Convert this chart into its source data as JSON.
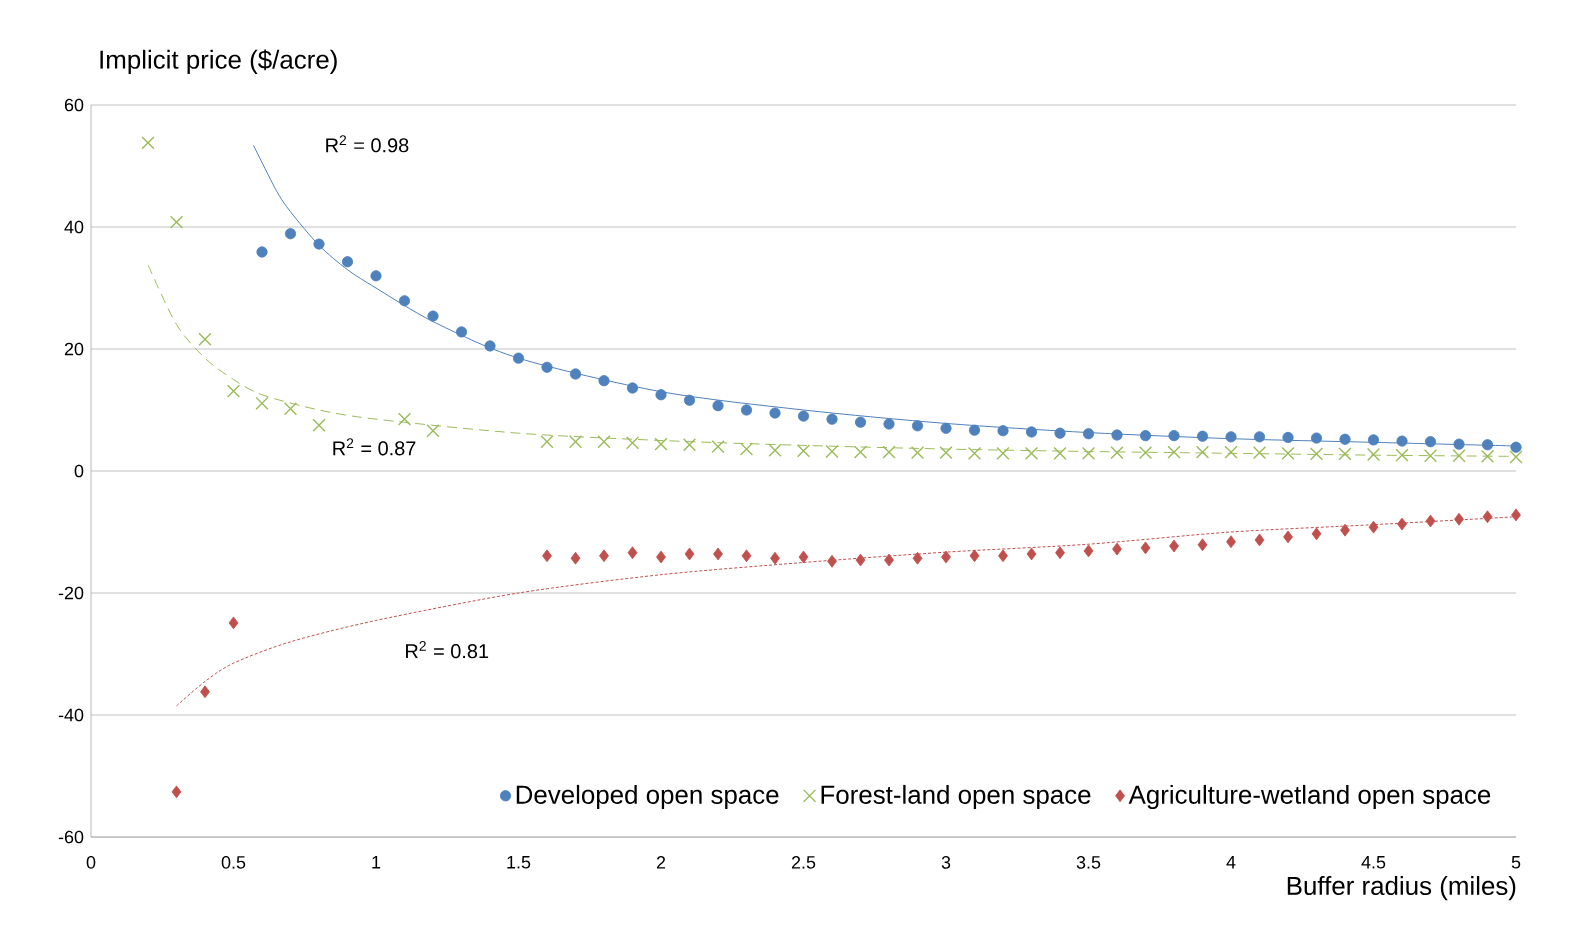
{
  "chart_data": {
    "type": "scatter",
    "xlabel": "Buffer radius (miles)",
    "ylabel": "Implicit price ($/acre)",
    "xlim": [
      0,
      5
    ],
    "ylim": [
      -60,
      60
    ],
    "xticks": [
      0,
      0.5,
      1,
      1.5,
      2,
      2.5,
      3,
      3.5,
      4,
      4.5,
      5
    ],
    "yticks": [
      -60,
      -40,
      -20,
      0,
      20,
      40,
      60
    ],
    "grid": "y",
    "legend": "bottom right",
    "series": [
      {
        "name": "Developed open space",
        "marker": "circle",
        "color": "#4f81bd",
        "x": [
          0.6,
          0.7,
          0.8,
          0.9,
          1.0,
          1.1,
          1.2,
          1.3,
          1.4,
          1.5,
          1.6,
          1.7,
          1.8,
          1.9,
          2.0,
          2.1,
          2.2,
          2.3,
          2.4,
          2.5,
          2.6,
          2.7,
          2.8,
          2.9,
          3.0,
          3.1,
          3.2,
          3.3,
          3.4,
          3.5,
          3.6,
          3.7,
          3.8,
          3.9,
          4.0,
          4.1,
          4.2,
          4.3,
          4.4,
          4.5,
          4.6,
          4.7,
          4.8,
          4.9,
          5.0
        ],
        "values": [
          35.9,
          38.9,
          37.2,
          34.3,
          32.0,
          27.9,
          25.4,
          22.8,
          20.5,
          18.5,
          17.0,
          15.9,
          14.8,
          13.6,
          12.5,
          11.6,
          10.7,
          10.0,
          9.5,
          9.0,
          8.5,
          8.0,
          7.7,
          7.4,
          7.0,
          6.7,
          6.6,
          6.4,
          6.2,
          6.1,
          5.9,
          5.8,
          5.8,
          5.7,
          5.6,
          5.6,
          5.5,
          5.4,
          5.2,
          5.1,
          4.9,
          4.8,
          4.4,
          4.3,
          3.9
        ]
      },
      {
        "name": "Forest-land open space",
        "marker": "cross",
        "color": "#9bbb59",
        "x": [
          0.2,
          0.3,
          0.4,
          0.5,
          0.6,
          0.7,
          0.8,
          1.1,
          1.2,
          1.6,
          1.7,
          1.8,
          1.9,
          2.0,
          2.1,
          2.2,
          2.3,
          2.4,
          2.5,
          2.6,
          2.7,
          2.8,
          2.9,
          3.0,
          3.1,
          3.2,
          3.3,
          3.4,
          3.5,
          3.6,
          3.7,
          3.8,
          3.9,
          4.0,
          4.1,
          4.2,
          4.3,
          4.4,
          4.5,
          4.6,
          4.7,
          4.8,
          4.9,
          5.0
        ],
        "values": [
          53.8,
          40.8,
          21.6,
          13.1,
          11.1,
          10.2,
          7.5,
          8.5,
          6.6,
          4.8,
          4.8,
          4.8,
          4.6,
          4.4,
          4.3,
          4.0,
          3.6,
          3.4,
          3.3,
          3.2,
          3.1,
          3.1,
          3.0,
          3.0,
          2.9,
          2.9,
          2.9,
          2.9,
          2.9,
          3.0,
          3.0,
          3.1,
          3.1,
          3.1,
          3.0,
          2.9,
          2.8,
          2.8,
          2.7,
          2.6,
          2.5,
          2.5,
          2.4,
          2.3
        ]
      },
      {
        "name": "Agriculture-wetland open space",
        "marker": "diamond",
        "color": "#c0504d",
        "x": [
          0.3,
          0.4,
          0.5,
          1.6,
          1.7,
          1.8,
          1.9,
          2.0,
          2.1,
          2.2,
          2.3,
          2.4,
          2.5,
          2.6,
          2.7,
          2.8,
          2.9,
          3.0,
          3.1,
          3.2,
          3.3,
          3.4,
          3.5,
          3.6,
          3.7,
          3.8,
          3.9,
          4.0,
          4.1,
          4.2,
          4.3,
          4.4,
          4.5,
          4.6,
          4.7,
          4.8,
          4.9,
          5.0
        ],
        "values": [
          -52.6,
          -36.2,
          -24.9,
          -13.9,
          -14.3,
          -13.9,
          -13.4,
          -14.1,
          -13.6,
          -13.6,
          -13.9,
          -14.3,
          -14.1,
          -14.8,
          -14.6,
          -14.6,
          -14.3,
          -14.1,
          -13.9,
          -13.9,
          -13.6,
          -13.4,
          -13.1,
          -12.8,
          -12.6,
          -12.3,
          -12.1,
          -11.6,
          -11.3,
          -10.8,
          -10.3,
          -9.7,
          -9.2,
          -8.7,
          -8.2,
          -7.9,
          -7.5,
          -7.2
        ]
      },
      {
        "type": "line",
        "line_style": "solid",
        "color": "#4f81bd",
        "x": [
          0.57,
          0.65,
          0.7,
          0.8,
          0.9,
          1.0,
          1.2,
          1.5,
          2.0,
          2.5,
          3.0,
          3.5,
          4.0,
          4.5,
          5.0
        ],
        "values": [
          53.4,
          46,
          42.5,
          37,
          33,
          30,
          24.5,
          18.5,
          13,
          10,
          7.8,
          6.3,
          5.3,
          4.7,
          4.1
        ]
      },
      {
        "type": "line",
        "line_style": "dashed",
        "color": "#9bbb59",
        "x": [
          0.2,
          0.3,
          0.4,
          0.5,
          0.6,
          0.8,
          1.0,
          1.5,
          2.0,
          2.5,
          3.0,
          3.5,
          4.0,
          4.5,
          5.0
        ],
        "values": [
          33.8,
          24,
          18.5,
          15,
          12.5,
          10,
          8.5,
          6.2,
          5,
          4.2,
          3.6,
          3.2,
          2.9,
          2.6,
          2.4
        ]
      },
      {
        "type": "line",
        "line_style": "dotted",
        "color": "#c0504d",
        "x": [
          0.3,
          0.4,
          0.5,
          0.7,
          1.0,
          1.5,
          2.0,
          2.5,
          3.0,
          3.5,
          4.0,
          4.5,
          5.0
        ],
        "values": [
          -38.5,
          -34.5,
          -31.5,
          -28,
          -24.5,
          -20,
          -17,
          -15,
          -13.3,
          -12,
          -10,
          -8.8,
          -7.5
        ]
      }
    ],
    "annotations": [
      "R$^{2}$ = 0.98",
      "R$^{2}$ = 0.87",
      "R$^{2}$ = 0.81"
    ]
  }
}
